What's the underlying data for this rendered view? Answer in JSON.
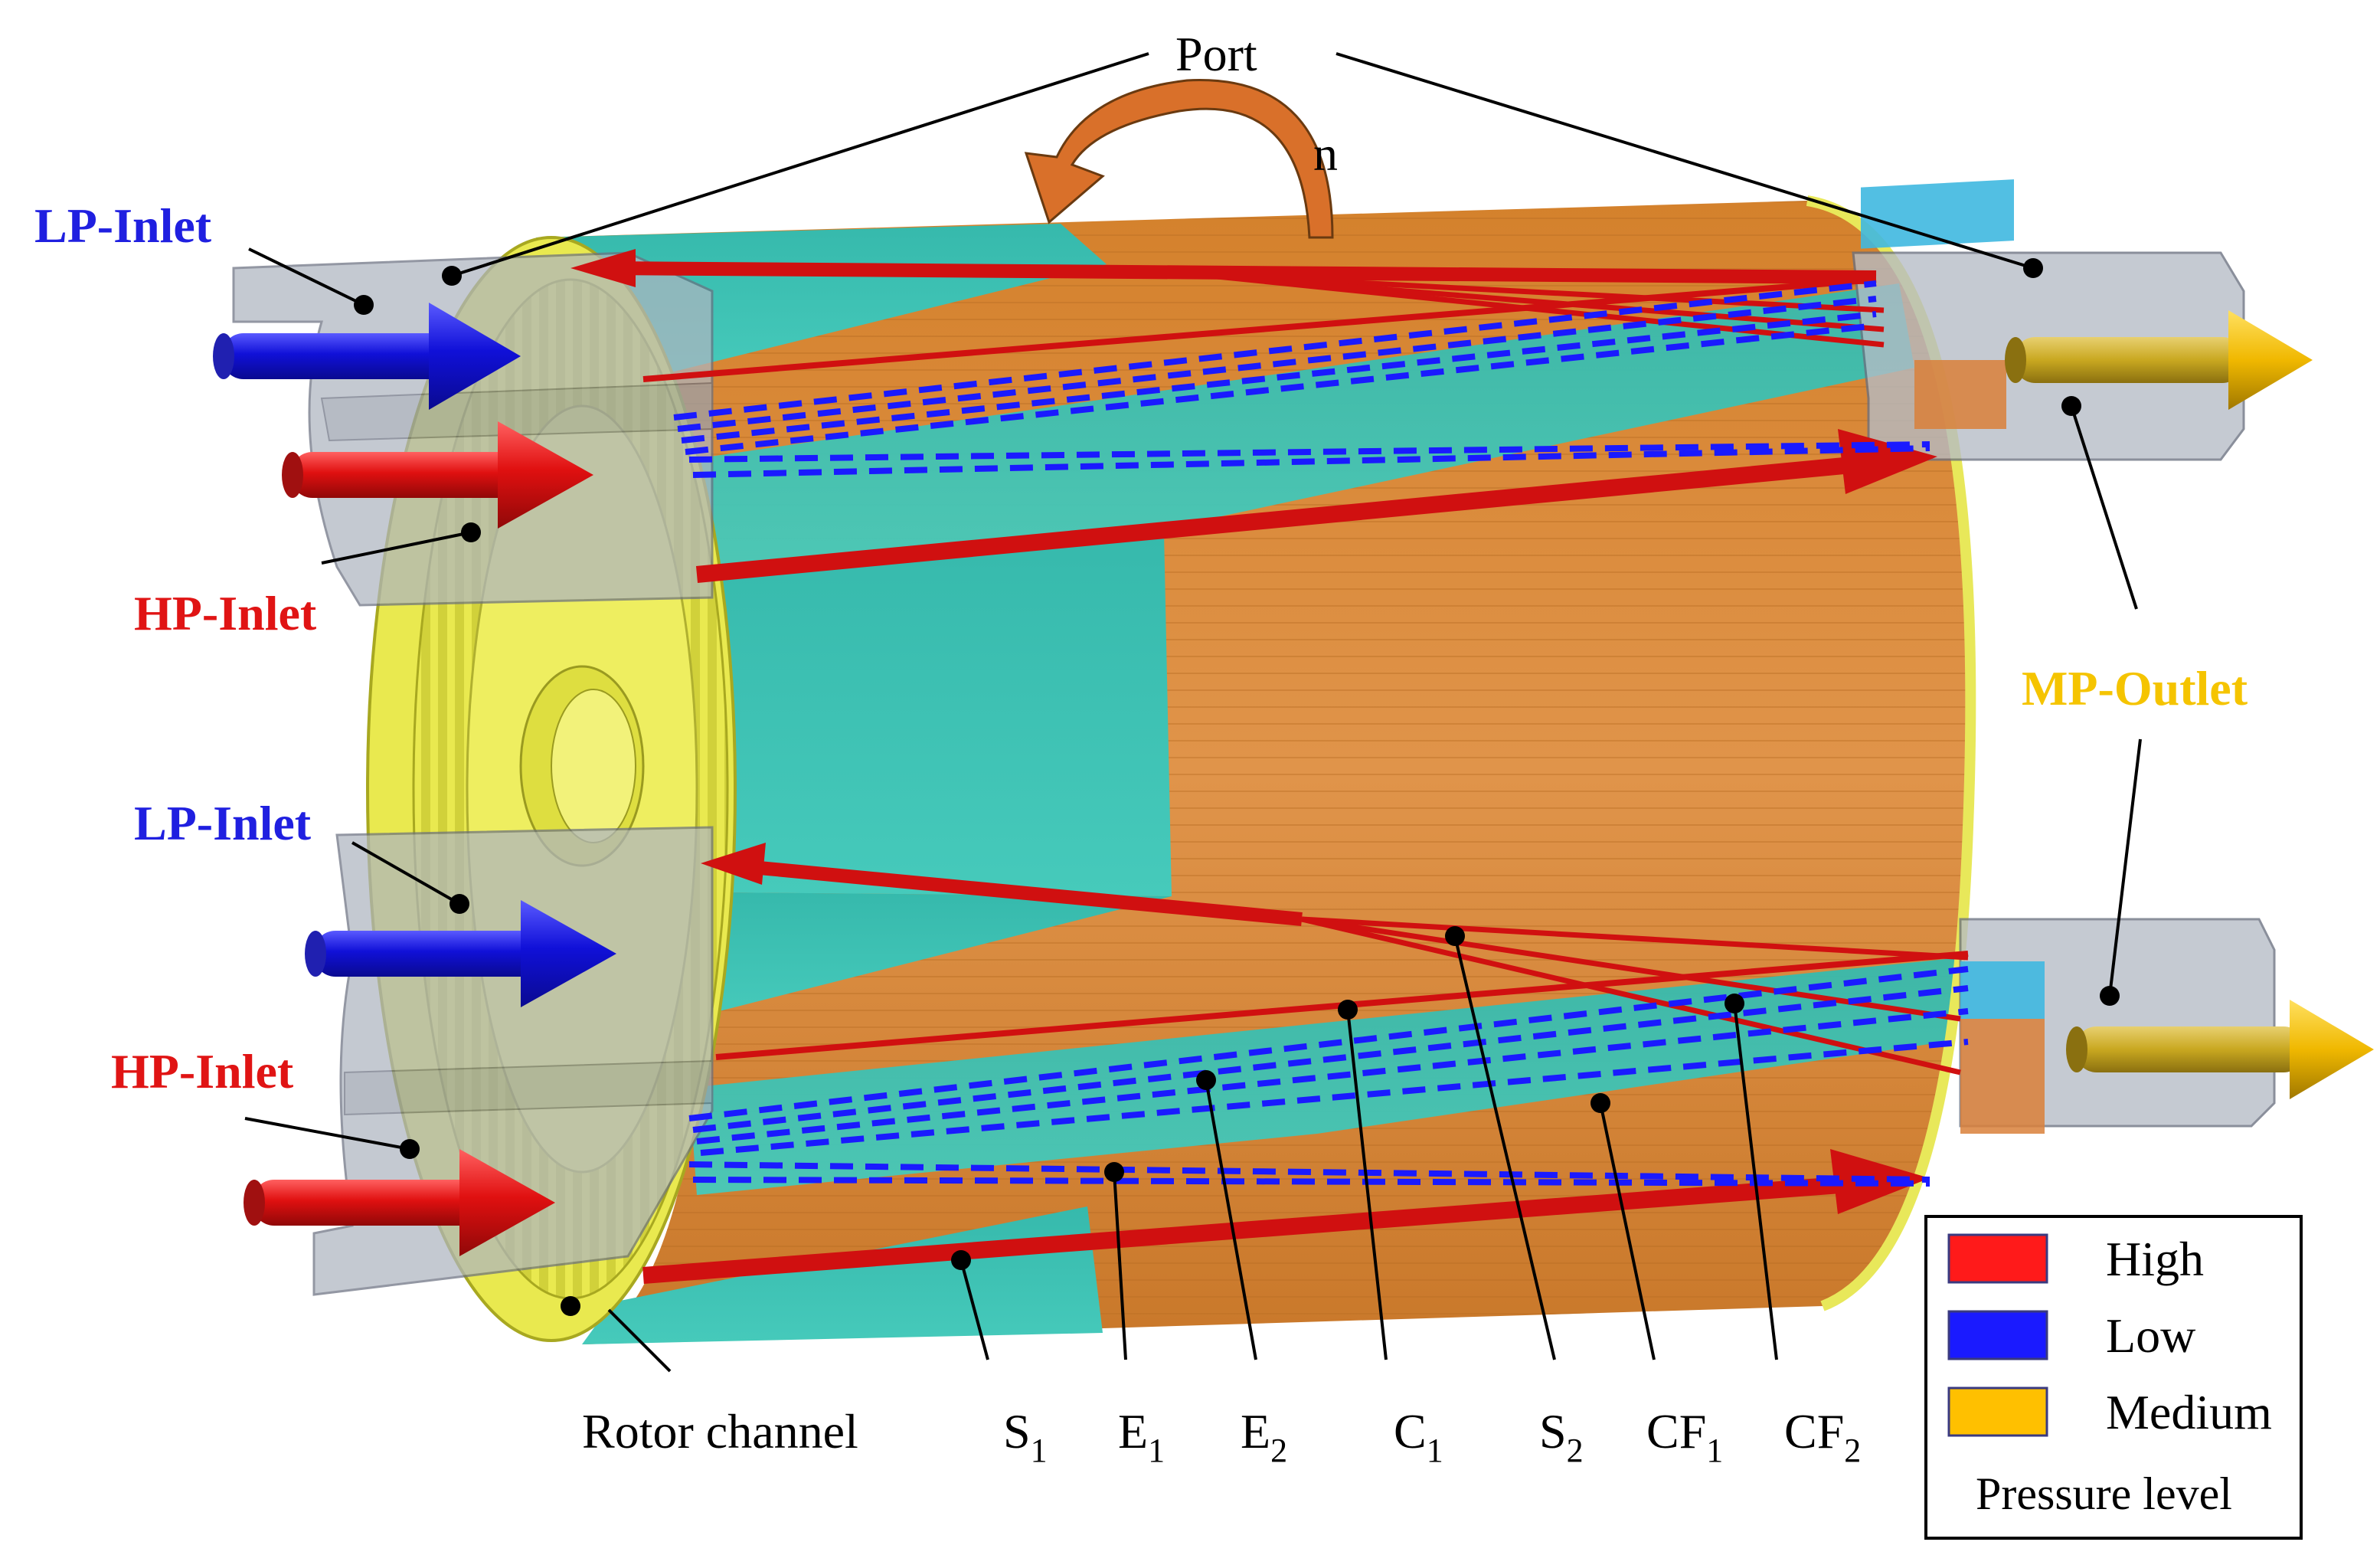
{
  "labels": {
    "port": "Port",
    "rotation": "n",
    "lp_inlet_top": "LP-Inlet",
    "hp_inlet_top": "HP-Inlet",
    "lp_inlet_bottom": "LP-Inlet",
    "hp_inlet_bottom": "HP-Inlet",
    "mp_outlet": "MP-Outlet",
    "rotor_channel": "Rotor channel"
  },
  "stations": [
    {
      "main": "S",
      "sub": "1"
    },
    {
      "main": "E",
      "sub": "1"
    },
    {
      "main": "E",
      "sub": "2"
    },
    {
      "main": "C",
      "sub": "1"
    },
    {
      "main": "S",
      "sub": "2"
    },
    {
      "main": "CF",
      "sub": "1"
    },
    {
      "main": "CF",
      "sub": "2"
    }
  ],
  "legend": {
    "items": [
      {
        "label": "High",
        "color": "#ff1a1a"
      },
      {
        "label": "Low",
        "color": "#1a1aff"
      },
      {
        "label": "Medium",
        "color": "#ffc000"
      }
    ],
    "title": "Pressure level"
  },
  "colors": {
    "lp": "#1f1fe0",
    "hp": "#e01414",
    "mp": "#f5c400",
    "wave_high": "#d01010",
    "wave_low": "#1a1aff",
    "rotor_orange": "#d98a30",
    "rotor_teal": "#3cc3b4",
    "endplate_yellow": "#e6e64a",
    "duct_gray": "#b8bfc8"
  }
}
